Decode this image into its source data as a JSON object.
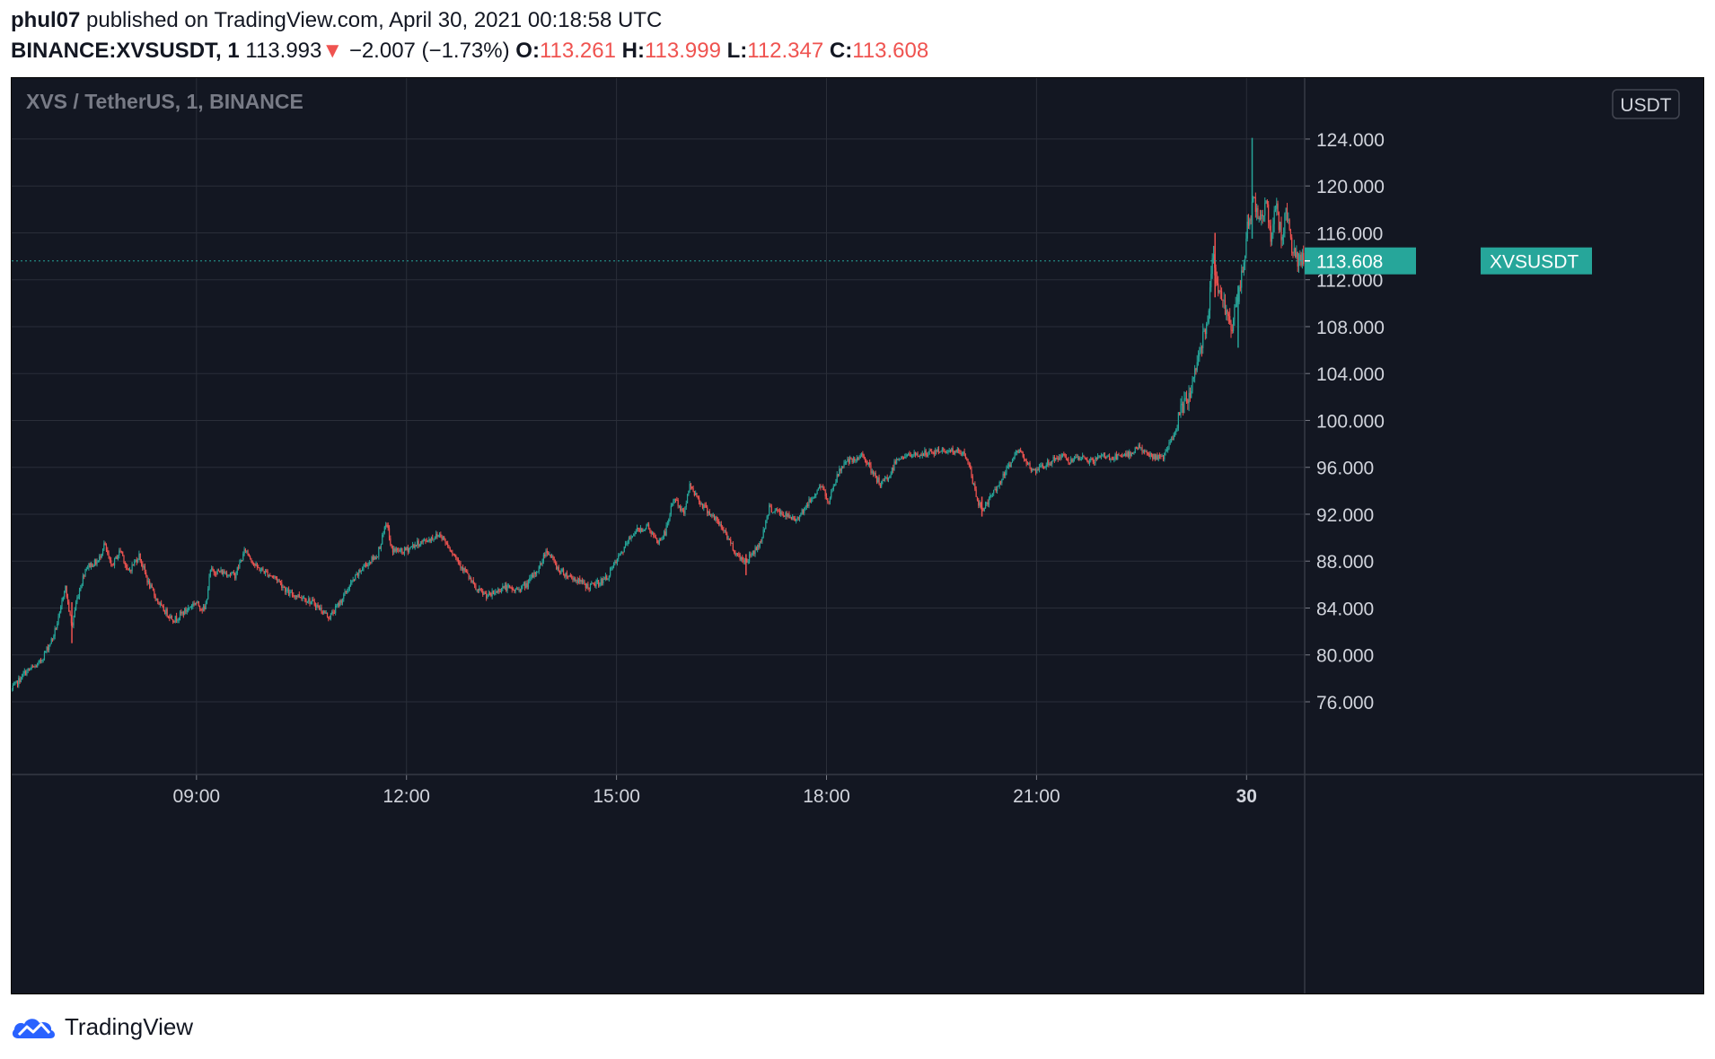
{
  "header": {
    "author": "phul07",
    "published": " published on TradingView.com, April 30, 2021 00:18:58 UTC",
    "symbol": "BINANCE:XVSUSDT, 1",
    "last": "113.993",
    "change_arrow": "▼",
    "change": "−2.007 (−1.73%)",
    "o_label": "O:",
    "o_value": "113.261",
    "h_label": "H:",
    "h_value": "113.999",
    "l_label": "L:",
    "l_value": "112.347",
    "c_label": "C:",
    "c_value": "113.608"
  },
  "footer": {
    "brand": "TradingView",
    "logo_icon": "tradingview-cloud-logo-icon"
  },
  "colors": {
    "background": "#131722",
    "grid": "#2a2e39",
    "up": "#26a69a",
    "down": "#ef5350",
    "axis_text": "#d1d4dc",
    "price_tag": "#26a69a",
    "header_red": "#ef5350"
  },
  "chart_data": {
    "type": "candlestick",
    "title": "XVS / TetherUS, 1, BINANCE",
    "currency": "USDT",
    "price_line": {
      "label": "XVSUSDT",
      "value": "113.608"
    },
    "y_ticks": [
      "76.000",
      "80.000",
      "84.000",
      "88.000",
      "92.000",
      "96.000",
      "100.000",
      "104.000",
      "108.000",
      "112.000",
      "116.000",
      "120.000",
      "124.000"
    ],
    "ylim": [
      69.8,
      129.2
    ],
    "x_ticks": [
      "09:00",
      "12:00",
      "15:00",
      "18:00",
      "21:00",
      "30"
    ],
    "x_tick_hours": [
      9,
      12,
      15,
      18,
      21,
      24
    ],
    "xlim_hours": [
      6.36,
      24.83
    ],
    "grid": true,
    "series_path": [
      [
        6.36,
        77.0
      ],
      [
        6.55,
        78.5
      ],
      [
        6.75,
        79.2
      ],
      [
        6.95,
        81.5
      ],
      [
        7.05,
        83.5
      ],
      [
        7.12,
        86.0
      ],
      [
        7.22,
        82.3
      ],
      [
        7.28,
        84.5
      ],
      [
        7.42,
        87.5
      ],
      [
        7.6,
        88.0
      ],
      [
        7.68,
        89.5
      ],
      [
        7.78,
        87.5
      ],
      [
        7.92,
        89.0
      ],
      [
        8.02,
        87.0
      ],
      [
        8.18,
        88.5
      ],
      [
        8.32,
        86.0
      ],
      [
        8.5,
        84.0
      ],
      [
        8.68,
        83.0
      ],
      [
        8.85,
        83.8
      ],
      [
        8.98,
        84.5
      ],
      [
        9.12,
        83.8
      ],
      [
        9.2,
        87.2
      ],
      [
        9.42,
        87.0
      ],
      [
        9.55,
        86.8
      ],
      [
        9.7,
        89.0
      ],
      [
        9.85,
        87.5
      ],
      [
        10.0,
        87.0
      ],
      [
        10.15,
        86.5
      ],
      [
        10.32,
        85.2
      ],
      [
        10.5,
        85.0
      ],
      [
        10.7,
        84.3
      ],
      [
        10.9,
        83.2
      ],
      [
        11.05,
        84.5
      ],
      [
        11.2,
        86.0
      ],
      [
        11.38,
        87.5
      ],
      [
        11.58,
        88.5
      ],
      [
        11.72,
        91.3
      ],
      [
        11.78,
        89.0
      ],
      [
        11.95,
        88.8
      ],
      [
        12.12,
        89.4
      ],
      [
        12.3,
        89.8
      ],
      [
        12.48,
        90.3
      ],
      [
        12.6,
        89.3
      ],
      [
        12.85,
        87.0
      ],
      [
        13.0,
        85.5
      ],
      [
        13.18,
        85.0
      ],
      [
        13.38,
        85.8
      ],
      [
        13.55,
        85.5
      ],
      [
        13.72,
        86.0
      ],
      [
        13.9,
        87.5
      ],
      [
        14.0,
        89.0
      ],
      [
        14.18,
        87.2
      ],
      [
        14.4,
        86.5
      ],
      [
        14.6,
        85.8
      ],
      [
        14.72,
        86.1
      ],
      [
        14.85,
        86.5
      ],
      [
        15.05,
        88.5
      ],
      [
        15.25,
        90.5
      ],
      [
        15.45,
        91.0
      ],
      [
        15.58,
        89.5
      ],
      [
        15.7,
        90.5
      ],
      [
        15.82,
        93.5
      ],
      [
        15.95,
        92.0
      ],
      [
        16.05,
        94.5
      ],
      [
        16.2,
        93.0
      ],
      [
        16.35,
        92.0
      ],
      [
        16.55,
        90.5
      ],
      [
        16.72,
        88.5
      ],
      [
        16.85,
        88.0
      ],
      [
        17.05,
        89.5
      ],
      [
        17.18,
        92.5
      ],
      [
        17.38,
        92.0
      ],
      [
        17.55,
        91.5
      ],
      [
        17.75,
        93.0
      ],
      [
        17.92,
        94.5
      ],
      [
        18.02,
        93.0
      ],
      [
        18.1,
        94.5
      ],
      [
        18.25,
        96.5
      ],
      [
        18.42,
        96.5
      ],
      [
        18.52,
        97.2
      ],
      [
        18.65,
        95.5
      ],
      [
        18.78,
        94.5
      ],
      [
        18.92,
        95.5
      ],
      [
        19.0,
        96.8
      ],
      [
        19.2,
        97.0
      ],
      [
        19.45,
        97.2
      ],
      [
        19.7,
        97.5
      ],
      [
        19.95,
        97.2
      ],
      [
        20.05,
        96.0
      ],
      [
        20.15,
        93.0
      ],
      [
        20.25,
        92.5
      ],
      [
        20.45,
        94.5
      ],
      [
        20.6,
        96.0
      ],
      [
        20.72,
        97.5
      ],
      [
        20.82,
        97.0
      ],
      [
        20.95,
        95.5
      ],
      [
        21.08,
        96.0
      ],
      [
        21.2,
        96.5
      ],
      [
        21.35,
        97.0
      ],
      [
        21.5,
        96.5
      ],
      [
        21.65,
        96.8
      ],
      [
        21.8,
        96.5
      ],
      [
        21.95,
        97.0
      ],
      [
        22.08,
        96.8
      ],
      [
        22.3,
        97.0
      ],
      [
        22.45,
        97.8
      ],
      [
        22.6,
        97.0
      ],
      [
        22.8,
        96.8
      ],
      [
        22.95,
        98.5
      ],
      [
        23.05,
        100.5
      ],
      [
        23.2,
        102.5
      ],
      [
        23.35,
        106.5
      ],
      [
        23.45,
        109.0
      ],
      [
        23.52,
        115.0
      ],
      [
        23.6,
        110.5
      ],
      [
        23.68,
        110.0
      ],
      [
        23.78,
        108.0
      ],
      [
        23.87,
        110.0
      ],
      [
        23.95,
        113.0
      ],
      [
        24.02,
        117.0
      ],
      [
        24.1,
        118.5
      ],
      [
        24.2,
        117.5
      ],
      [
        24.28,
        118.5
      ],
      [
        24.35,
        115.5
      ],
      [
        24.42,
        118.5
      ],
      [
        24.5,
        115.5
      ],
      [
        24.57,
        118.0
      ],
      [
        24.66,
        114.5
      ],
      [
        24.75,
        113.5
      ],
      [
        24.8,
        113.6
      ]
    ],
    "spikes": [
      {
        "x": 24.08,
        "high": 124.1,
        "low": 115.5
      },
      {
        "x": 23.88,
        "high": 111.5,
        "low": 106.2
      },
      {
        "x": 23.55,
        "high": 116.0,
        "low": 110.5
      },
      {
        "x": 7.22,
        "high": 84.5,
        "low": 81.0
      },
      {
        "x": 16.85,
        "high": 88.6,
        "low": 86.8
      },
      {
        "x": 20.22,
        "high": 93.5,
        "low": 91.8
      }
    ]
  }
}
